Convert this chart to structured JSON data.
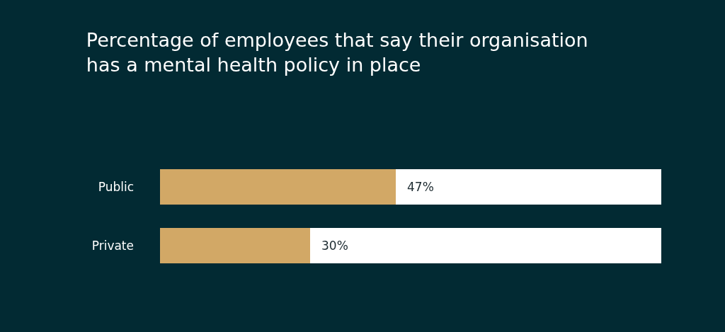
{
  "chart_data": {
    "type": "bar",
    "orientation": "horizontal",
    "stacked": true,
    "title": "Percentage of employees that say their organisation has a mental health policy in place",
    "categories": [
      "Public",
      "Private"
    ],
    "series": [
      {
        "color": "#d2a866",
        "values": [
          47,
          30
        ],
        "value_labels": [
          "47%",
          "30%"
        ]
      },
      {
        "color": "#ffffff",
        "values": [
          53,
          70
        ]
      }
    ],
    "xlim": [
      0,
      100
    ],
    "tick_labels": "y"
  }
}
